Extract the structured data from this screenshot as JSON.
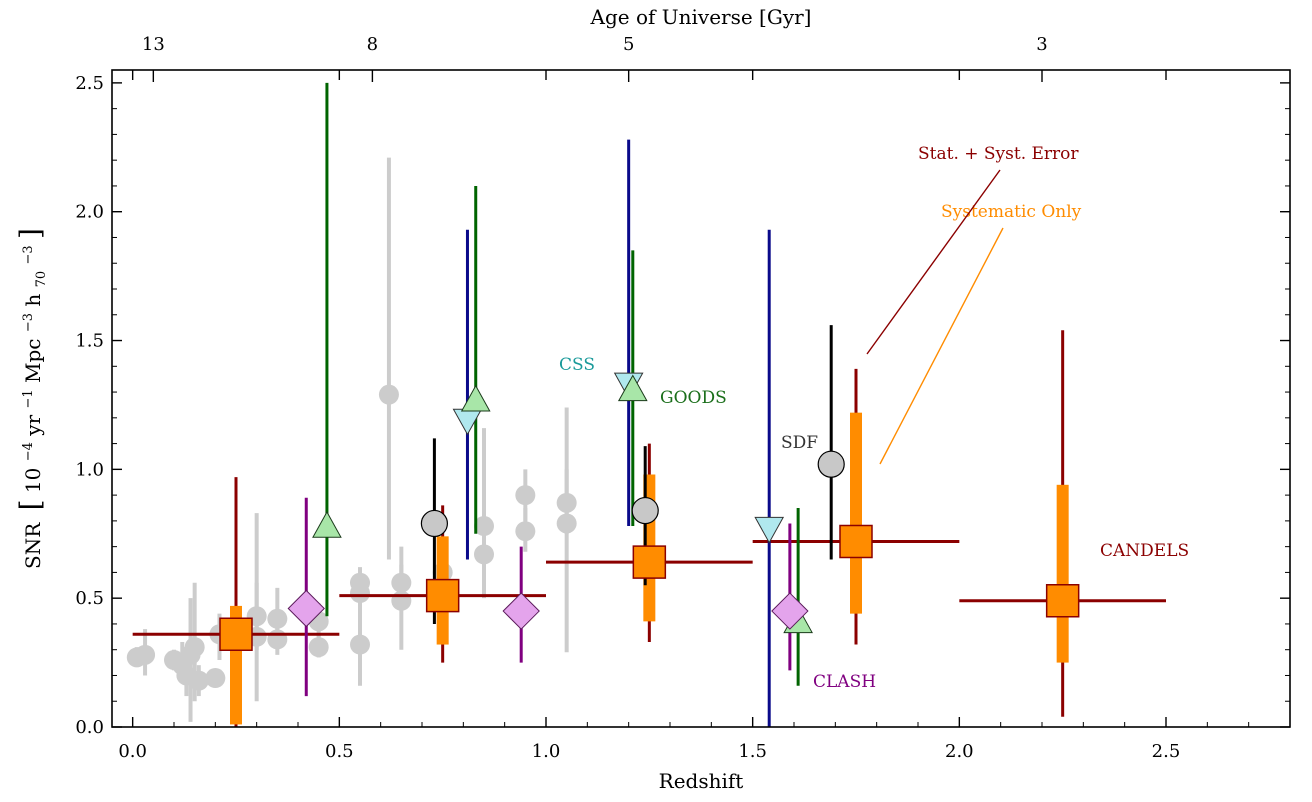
{
  "chart_data": {
    "type": "scatter",
    "xlabel": "Redshift",
    "ylabel_parts": {
      "prefix": "SNR",
      "unit_a": "10",
      "exp_a": "−4",
      "unit_b": " yr",
      "exp_b": "−1",
      "unit_c": " Mpc",
      "exp_c": "−3",
      "unit_d": " h",
      "sub_d": "70",
      "exp_d": "−3"
    },
    "top_axis_label": "Age of Universe [Gyr]",
    "xlim": [
      -0.05,
      2.8
    ],
    "ylim": [
      0.0,
      2.55
    ],
    "x_ticks": [
      0.0,
      0.5,
      1.0,
      1.5,
      2.0,
      2.5
    ],
    "x_tick_labels": [
      "0.0",
      "0.5",
      "1.0",
      "1.5",
      "2.0",
      "2.5"
    ],
    "y_ticks": [
      0.0,
      0.5,
      1.0,
      1.5,
      2.0,
      2.5
    ],
    "y_tick_labels": [
      "0.0",
      "0.5",
      "1.0",
      "1.5",
      "2.0",
      "2.5"
    ],
    "top_ticks": [
      {
        "label": "13",
        "z": 0.05
      },
      {
        "label": "8",
        "z": 0.58
      },
      {
        "label": "5",
        "z": 1.2
      },
      {
        "label": "3",
        "z": 2.2
      }
    ],
    "grid": false,
    "colors": {
      "literature": "#cccccc",
      "css": "#b0e8ee",
      "css_bar": "#0a0a8a",
      "goods": "#a8e6a8",
      "goods_bar": "#006400",
      "sdf": "#c8c8c8",
      "sdf_bar": "#000000",
      "clash": "#e4a4ec",
      "clash_bar": "#800080",
      "candels": "#ff8c00",
      "candels_err": "#8b0000"
    },
    "literature_points": [
      {
        "x": 0.01,
        "y": 0.27,
        "lo": 0.24,
        "hi": 0.31
      },
      {
        "x": 0.03,
        "y": 0.28,
        "lo": 0.2,
        "hi": 0.38
      },
      {
        "x": 0.1,
        "y": 0.26,
        "lo": 0.22,
        "hi": 0.3
      },
      {
        "x": 0.12,
        "y": 0.24,
        "lo": 0.18,
        "hi": 0.33
      },
      {
        "x": 0.13,
        "y": 0.2,
        "lo": 0.12,
        "hi": 0.27
      },
      {
        "x": 0.14,
        "y": 0.28,
        "lo": 0.02,
        "hi": 0.5
      },
      {
        "x": 0.15,
        "y": 0.31,
        "lo": 0.1,
        "hi": 0.56
      },
      {
        "x": 0.16,
        "y": 0.18,
        "lo": 0.12,
        "hi": 0.24
      },
      {
        "x": 0.2,
        "y": 0.19,
        "lo": 0.16,
        "hi": 0.22
      },
      {
        "x": 0.21,
        "y": 0.36,
        "lo": 0.26,
        "hi": 0.44
      },
      {
        "x": 0.3,
        "y": 0.35,
        "lo": 0.1,
        "hi": 0.83
      },
      {
        "x": 0.3,
        "y": 0.43,
        "lo": 0.3,
        "hi": 0.56
      },
      {
        "x": 0.35,
        "y": 0.42,
        "lo": 0.32,
        "hi": 0.54
      },
      {
        "x": 0.35,
        "y": 0.34,
        "lo": 0.28,
        "hi": 0.42
      },
      {
        "x": 0.45,
        "y": 0.31,
        "lo": 0.27,
        "hi": 0.36
      },
      {
        "x": 0.45,
        "y": 0.41,
        "lo": 0.35,
        "hi": 0.48
      },
      {
        "x": 0.55,
        "y": 0.56,
        "lo": 0.5,
        "hi": 0.62
      },
      {
        "x": 0.55,
        "y": 0.52,
        "lo": 0.16,
        "hi": 0.62
      },
      {
        "x": 0.55,
        "y": 0.32,
        "lo": 0.25,
        "hi": 0.4
      },
      {
        "x": 0.62,
        "y": 1.29,
        "lo": 0.65,
        "hi": 2.21
      },
      {
        "x": 0.65,
        "y": 0.49,
        "lo": 0.3,
        "hi": 0.7
      },
      {
        "x": 0.65,
        "y": 0.56,
        "lo": 0.5,
        "hi": 0.63
      },
      {
        "x": 0.75,
        "y": 0.48,
        "lo": 0.42,
        "hi": 0.55
      },
      {
        "x": 0.75,
        "y": 0.6,
        "lo": 0.5,
        "hi": 0.7
      },
      {
        "x": 0.85,
        "y": 0.67,
        "lo": 0.55,
        "hi": 0.8
      },
      {
        "x": 0.85,
        "y": 0.78,
        "lo": 0.5,
        "hi": 1.16
      },
      {
        "x": 0.95,
        "y": 0.76,
        "lo": 0.68,
        "hi": 0.85
      },
      {
        "x": 0.95,
        "y": 0.9,
        "lo": 0.8,
        "hi": 1.0
      },
      {
        "x": 1.05,
        "y": 0.87,
        "lo": 0.75,
        "hi": 1.0
      },
      {
        "x": 1.05,
        "y": 0.79,
        "lo": 0.29,
        "hi": 1.24
      }
    ],
    "css_points": [
      {
        "x": 0.81,
        "y": 1.19,
        "lo": 0.65,
        "hi": 1.93
      },
      {
        "x": 1.2,
        "y": 1.33,
        "lo": 0.78,
        "hi": 2.28
      },
      {
        "x": 1.54,
        "y": 0.77,
        "lo": 0.0,
        "hi": 1.93
      }
    ],
    "goods_points": [
      {
        "x": 0.47,
        "y": 0.78,
        "lo": 0.43,
        "hi": 2.5
      },
      {
        "x": 0.83,
        "y": 1.27,
        "lo": 0.75,
        "hi": 2.1
      },
      {
        "x": 1.21,
        "y": 1.31,
        "lo": 0.78,
        "hi": 1.85
      },
      {
        "x": 1.61,
        "y": 0.41,
        "lo": 0.16,
        "hi": 0.85
      }
    ],
    "sdf_points": [
      {
        "x": 0.73,
        "y": 0.79,
        "lo": 0.4,
        "hi": 1.12
      },
      {
        "x": 1.24,
        "y": 0.84,
        "lo": 0.55,
        "hi": 1.09
      },
      {
        "x": 1.69,
        "y": 1.02,
        "lo": 0.65,
        "hi": 1.56
      }
    ],
    "clash_points": [
      {
        "x": 0.42,
        "y": 0.46,
        "lo": 0.12,
        "hi": 0.89
      },
      {
        "x": 0.94,
        "y": 0.45,
        "lo": 0.25,
        "hi": 0.7
      },
      {
        "x": 1.59,
        "y": 0.45,
        "lo": 0.22,
        "hi": 0.79
      }
    ],
    "candels_points": [
      {
        "x": 0.25,
        "y": 0.36,
        "xlo": 0.0,
        "xhi": 0.5,
        "lo": 0.0,
        "hi": 0.97,
        "syslo": 0.01,
        "syshi": 0.47
      },
      {
        "x": 0.75,
        "y": 0.51,
        "xlo": 0.5,
        "xhi": 1.0,
        "lo": 0.25,
        "hi": 0.86,
        "syslo": 0.32,
        "syshi": 0.74
      },
      {
        "x": 1.25,
        "y": 0.64,
        "xlo": 1.0,
        "xhi": 1.5,
        "lo": 0.33,
        "hi": 1.1,
        "syslo": 0.41,
        "syshi": 0.98
      },
      {
        "x": 1.75,
        "y": 0.72,
        "xlo": 1.5,
        "xhi": 2.0,
        "lo": 0.32,
        "hi": 1.39,
        "syslo": 0.44,
        "syshi": 1.22
      },
      {
        "x": 2.25,
        "y": 0.49,
        "xlo": 2.0,
        "xhi": 2.5,
        "lo": 0.04,
        "hi": 1.54,
        "syslo": 0.25,
        "syshi": 0.94
      }
    ],
    "annotations": {
      "css": "CSS",
      "goods": "GOODS",
      "sdf": "SDF",
      "clash": "CLASH",
      "candels": "CANDELS",
      "stat_syst": "Stat. + Syst. Error",
      "syst_only": "Systematic Only"
    }
  }
}
